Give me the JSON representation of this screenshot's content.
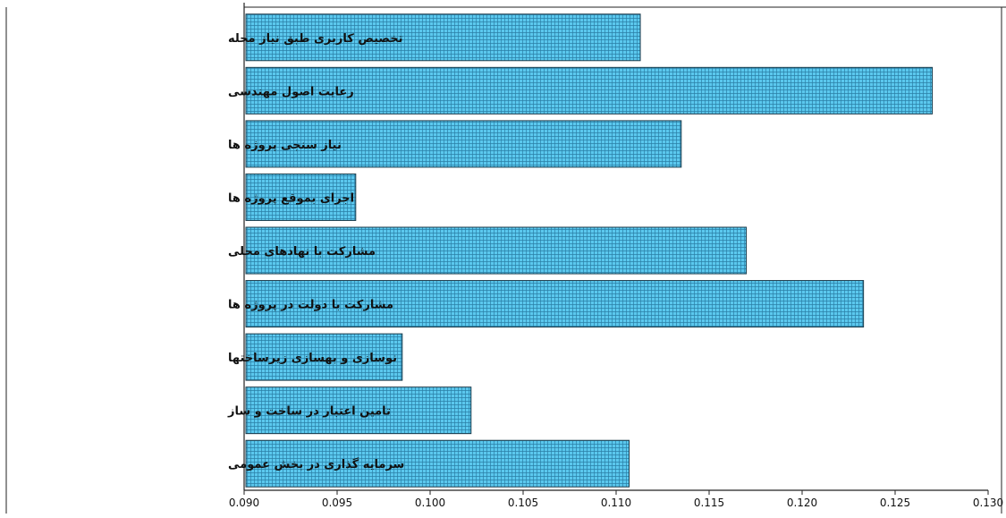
{
  "chart_data": {
    "type": "bar",
    "orientation": "horizontal",
    "categories": [
      "تخصیص کاربری طبق نیاز محله",
      "رعایت اصول مهندسی",
      "نیاز سنجی پروژه ها",
      "اجرای بموقع پروژه ها",
      "مشارکت با نهادهای محلی",
      "مشارکت با دولت در پروژه ها",
      "نوسازی و بهسازی زیرساختها",
      "تامین اعتبار در ساخت و ساز",
      "سرمایه گذاری در بخش عمومی"
    ],
    "values": [
      0.1113,
      0.127,
      0.1135,
      0.096,
      0.117,
      0.1233,
      0.0985,
      0.1022,
      0.1107
    ],
    "xlim": [
      0.09,
      0.13
    ],
    "xticks": [
      "0.090",
      "0.095",
      "0.100",
      "0.105",
      "0.110",
      "0.115",
      "0.120",
      "0.125",
      "0.130"
    ],
    "title": "",
    "xlabel": "",
    "ylabel": "",
    "grid": false,
    "legend": "none",
    "bar_color": "#5bc8ee",
    "bar_pattern_color": "#2a7fa6",
    "bar_edge_color": "#1a3a4a",
    "axis_color": "#222222"
  }
}
